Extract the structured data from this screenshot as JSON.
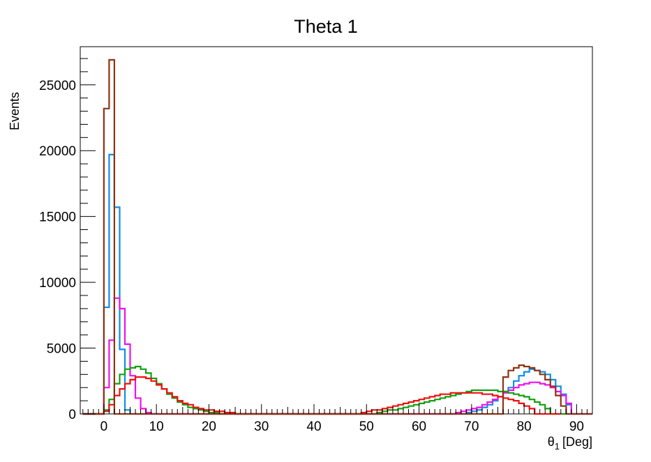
{
  "chart_data": {
    "type": "line",
    "title": "Theta 1",
    "xlabel_symbol": "θ",
    "xlabel_subscript": "1",
    "xlabel_unit": "[Deg]",
    "ylabel": "Events",
    "xlim": [
      -4.5,
      93
    ],
    "ylim": [
      0,
      27900
    ],
    "x_ticks": [
      0,
      10,
      20,
      30,
      40,
      50,
      60,
      70,
      80,
      90
    ],
    "y_ticks": [
      0,
      5000,
      10000,
      15000,
      20000,
      25000
    ],
    "x_tick_labels": [
      "0",
      "10",
      "20",
      "30",
      "40",
      "50",
      "60",
      "70",
      "80",
      "90"
    ],
    "y_tick_labels": [
      "0",
      "5000",
      "10000",
      "15000",
      "20000",
      "25000"
    ],
    "grid": false,
    "legend": "none",
    "bin_edges_start": -4,
    "bin_width": 1,
    "series": [
      {
        "color": "#0f8ee8",
        "values": [
          0,
          0,
          0,
          0,
          8100,
          19700,
          15700,
          4900,
          300,
          0,
          0,
          0,
          0,
          0,
          0,
          0,
          0,
          0,
          0,
          0,
          0,
          0,
          0,
          0,
          0,
          0,
          0,
          0,
          0,
          0,
          0,
          0,
          0,
          0,
          0,
          0,
          0,
          0,
          0,
          0,
          0,
          0,
          0,
          0,
          0,
          0,
          0,
          0,
          0,
          0,
          0,
          0,
          0,
          0,
          0,
          0,
          0,
          0,
          0,
          0,
          0,
          0,
          0,
          0,
          0,
          0,
          0,
          0,
          0,
          0,
          0,
          0,
          0,
          100,
          200,
          300,
          500,
          700,
          1000,
          1300,
          1700,
          2000,
          2500,
          2900,
          3200,
          3400,
          3300,
          3200,
          3000,
          2600,
          2100,
          1500,
          700,
          0,
          0,
          0,
          0
        ]
      },
      {
        "color": "#ee10ee",
        "values": [
          0,
          0,
          0,
          0,
          2000,
          5600,
          8800,
          8000,
          5300,
          2900,
          1200,
          400,
          100,
          0,
          0,
          0,
          0,
          0,
          0,
          0,
          0,
          0,
          0,
          0,
          0,
          0,
          0,
          0,
          0,
          0,
          0,
          0,
          0,
          0,
          0,
          0,
          0,
          0,
          0,
          0,
          0,
          0,
          0,
          0,
          0,
          0,
          0,
          0,
          0,
          0,
          0,
          0,
          0,
          0,
          0,
          0,
          0,
          0,
          0,
          0,
          0,
          0,
          0,
          0,
          0,
          0,
          0,
          0,
          0,
          0,
          0,
          100,
          200,
          300,
          400,
          500,
          700,
          900,
          1100,
          1300,
          1600,
          1800,
          2000,
          2200,
          2300,
          2400,
          2400,
          2300,
          2200,
          2000,
          1700,
          1400,
          800,
          0,
          0,
          0,
          0
        ]
      },
      {
        "color": "#12a012",
        "values": [
          0,
          0,
          0,
          0,
          300,
          1100,
          2300,
          3000,
          3400,
          3500,
          3600,
          3400,
          3100,
          2700,
          2300,
          1900,
          1500,
          1200,
          900,
          700,
          500,
          400,
          300,
          200,
          100,
          100,
          0,
          0,
          0,
          0,
          0,
          0,
          0,
          0,
          0,
          0,
          0,
          0,
          0,
          0,
          0,
          0,
          0,
          0,
          0,
          0,
          0,
          0,
          0,
          0,
          0,
          0,
          0,
          0,
          0,
          0,
          100,
          200,
          300,
          300,
          400,
          500,
          600,
          700,
          800,
          900,
          1000,
          1100,
          1200,
          1300,
          1400,
          1500,
          1600,
          1700,
          1800,
          1800,
          1800,
          1800,
          1800,
          1700,
          1700,
          1600,
          1500,
          1400,
          1300,
          1100,
          900,
          700,
          400,
          0,
          0,
          0,
          0
        ]
      },
      {
        "color": "#ee1010",
        "values": [
          0,
          0,
          0,
          0,
          200,
          700,
          1400,
          1900,
          2300,
          2600,
          2800,
          2800,
          2700,
          2500,
          2200,
          1900,
          1600,
          1300,
          1000,
          800,
          700,
          500,
          400,
          300,
          300,
          200,
          200,
          100,
          100,
          0,
          0,
          0,
          0,
          0,
          0,
          0,
          0,
          0,
          0,
          0,
          0,
          0,
          0,
          0,
          0,
          0,
          0,
          0,
          0,
          0,
          0,
          0,
          0,
          100,
          200,
          300,
          300,
          400,
          500,
          600,
          700,
          800,
          900,
          1000,
          1100,
          1200,
          1300,
          1400,
          1500,
          1500,
          1600,
          1600,
          1600,
          1600,
          1600,
          1600,
          1500,
          1500,
          1400,
          1300,
          1200,
          1100,
          1000,
          800,
          600,
          400,
          0,
          0,
          0,
          0,
          0
        ]
      },
      {
        "color": "#903212",
        "values": [
          0,
          0,
          0,
          0,
          23200,
          26900,
          0,
          0,
          0,
          0,
          0,
          0,
          0,
          0,
          0,
          0,
          0,
          0,
          0,
          0,
          0,
          0,
          0,
          0,
          0,
          0,
          0,
          0,
          0,
          0,
          0,
          0,
          0,
          0,
          0,
          0,
          0,
          0,
          0,
          0,
          0,
          0,
          0,
          0,
          0,
          0,
          0,
          0,
          0,
          0,
          0,
          0,
          0,
          0,
          0,
          0,
          0,
          0,
          0,
          0,
          0,
          0,
          0,
          0,
          0,
          0,
          0,
          0,
          0,
          0,
          0,
          0,
          0,
          0,
          0,
          0,
          0,
          0,
          0,
          0,
          2800,
          3300,
          3500,
          3700,
          3600,
          3500,
          3300,
          3000,
          2600,
          2100,
          1400,
          600,
          0,
          0,
          0,
          0,
          0
        ]
      }
    ]
  }
}
